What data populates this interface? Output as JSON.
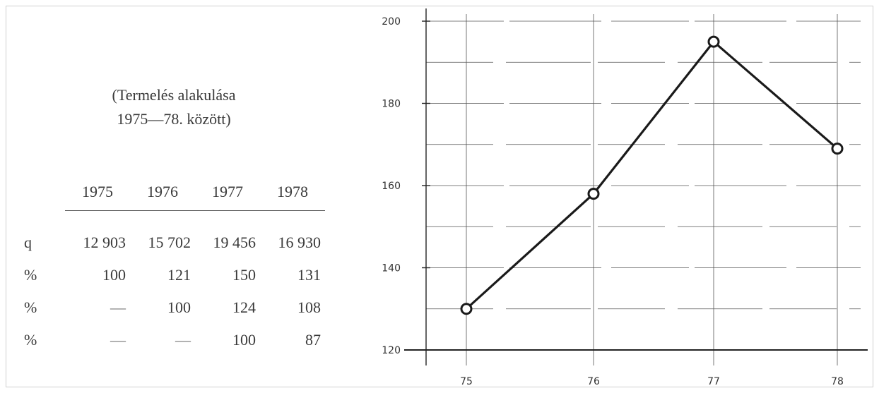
{
  "caption": {
    "line1": "(Termelés alakulása",
    "line2": "1975—78. között)"
  },
  "table": {
    "years": [
      "1975",
      "1976",
      "1977",
      "1978"
    ],
    "rows": [
      {
        "label": "q",
        "values": [
          "12 903",
          "15 702",
          "19 456",
          "16 930"
        ]
      },
      {
        "label": "%",
        "values": [
          "100",
          "121",
          "150",
          "131"
        ]
      },
      {
        "label": "%",
        "values": [
          "—",
          "100",
          "124",
          "108"
        ]
      },
      {
        "label": "%",
        "values": [
          "—",
          "—",
          "100",
          "87"
        ]
      }
    ]
  },
  "chart_data": {
    "type": "line",
    "title": "",
    "xlabel": "",
    "ylabel": "",
    "categories": [
      "75",
      "76",
      "77",
      "78"
    ],
    "values": [
      130,
      158,
      195,
      169
    ],
    "ylim": [
      120,
      200
    ],
    "yticks": [
      "120",
      "140",
      "160",
      "180",
      "200"
    ],
    "grid": true,
    "markers": "open-circle",
    "line_color": "#1a1a1a"
  }
}
